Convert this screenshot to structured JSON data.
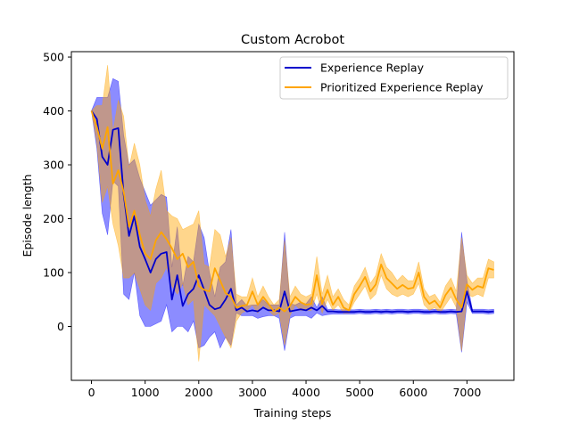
{
  "chart_data": {
    "type": "line",
    "title": "Custom Acrobot",
    "xlabel": "Training steps",
    "ylabel": "Episode length",
    "xlim": [
      -375,
      7875
    ],
    "ylim": [
      -100,
      510
    ],
    "xticks": [
      0,
      1000,
      2000,
      3000,
      4000,
      5000,
      6000,
      7000
    ],
    "yticks": [
      0,
      100,
      200,
      300,
      400,
      500
    ],
    "xtick_labels": [
      "0",
      "1000",
      "2000",
      "3000",
      "4000",
      "5000",
      "6000",
      "7000"
    ],
    "ytick_labels": [
      "0",
      "100",
      "200",
      "300",
      "400",
      "500"
    ],
    "grid": false,
    "legend_position": "top-right",
    "series": [
      {
        "name": "Experience Replay",
        "color": "#0000cc",
        "band_color": "#0000ff",
        "x": [
          0,
          100,
          200,
          300,
          400,
          500,
          600,
          700,
          800,
          900,
          1000,
          1100,
          1200,
          1300,
          1400,
          1500,
          1600,
          1700,
          1800,
          1900,
          2000,
          2100,
          2200,
          2300,
          2400,
          2500,
          2600,
          2700,
          2800,
          2900,
          3000,
          3100,
          3200,
          3300,
          3400,
          3500,
          3600,
          3700,
          3800,
          3900,
          4000,
          4100,
          4200,
          4300,
          4400,
          4500,
          4600,
          4700,
          4800,
          4900,
          5000,
          5100,
          5200,
          5300,
          5400,
          5500,
          5600,
          5700,
          5800,
          5900,
          6000,
          6100,
          6200,
          6300,
          6400,
          6500,
          6600,
          6700,
          6800,
          6900,
          7000,
          7100,
          7200,
          7300,
          7400,
          7500
        ],
        "y": [
          400,
          385,
          315,
          300,
          365,
          368,
          245,
          168,
          205,
          148,
          125,
          100,
          125,
          135,
          138,
          50,
          95,
          38,
          60,
          70,
          95,
          68,
          40,
          32,
          35,
          50,
          70,
          30,
          35,
          28,
          30,
          28,
          35,
          30,
          30,
          28,
          65,
          28,
          30,
          32,
          30,
          35,
          30,
          38,
          28,
          28,
          27,
          27,
          27,
          27,
          28,
          27,
          27,
          28,
          27,
          28,
          27,
          28,
          28,
          27,
          28,
          28,
          27,
          27,
          28,
          27,
          27,
          28,
          27,
          28,
          65,
          28,
          28,
          28,
          27,
          28
        ],
        "lower": [
          400,
          330,
          210,
          170,
          270,
          260,
          60,
          50,
          100,
          20,
          0,
          0,
          5,
          10,
          40,
          -10,
          0,
          0,
          -10,
          10,
          -40,
          -35,
          -20,
          -10,
          -40,
          -20,
          -35,
          25,
          20,
          20,
          20,
          15,
          18,
          20,
          20,
          15,
          -45,
          15,
          20,
          20,
          20,
          15,
          25,
          20,
          22,
          23,
          23,
          23,
          23,
          23,
          24,
          23,
          23,
          24,
          23,
          24,
          23,
          24,
          24,
          23,
          24,
          24,
          23,
          23,
          24,
          23,
          23,
          24,
          23,
          -48,
          45,
          24,
          24,
          24,
          23,
          24
        ],
        "upper": [
          400,
          425,
          425,
          425,
          460,
          455,
          355,
          300,
          310,
          275,
          250,
          225,
          235,
          245,
          240,
          110,
          185,
          75,
          130,
          120,
          190,
          165,
          100,
          55,
          110,
          120,
          180,
          40,
          50,
          38,
          40,
          40,
          50,
          40,
          40,
          40,
          175,
          42,
          40,
          45,
          42,
          55,
          35,
          55,
          32,
          32,
          31,
          31,
          31,
          31,
          32,
          31,
          31,
          32,
          31,
          32,
          31,
          32,
          32,
          31,
          32,
          32,
          31,
          31,
          32,
          31,
          31,
          32,
          31,
          175,
          85,
          32,
          32,
          32,
          31,
          32
        ]
      },
      {
        "name": "Prioritized Experience Replay",
        "color": "#ffa500",
        "band_color": "#ffa500",
        "x": [
          0,
          100,
          200,
          300,
          400,
          500,
          600,
          700,
          800,
          900,
          1000,
          1100,
          1200,
          1300,
          1400,
          1500,
          1600,
          1700,
          1800,
          1900,
          2000,
          2100,
          2200,
          2300,
          2400,
          2500,
          2600,
          2700,
          2800,
          2900,
          3000,
          3100,
          3200,
          3300,
          3400,
          3500,
          3600,
          3700,
          3800,
          3900,
          4000,
          4100,
          4200,
          4300,
          4400,
          4500,
          4600,
          4700,
          4800,
          4900,
          5000,
          5100,
          5200,
          5300,
          5400,
          5500,
          5600,
          5700,
          5800,
          5900,
          6000,
          6100,
          6200,
          6300,
          6400,
          6500,
          6600,
          6700,
          6800,
          6900,
          7000,
          7100,
          7200,
          7300,
          7400,
          7500
        ],
        "y": [
          400,
          370,
          330,
          370,
          265,
          290,
          250,
          185,
          215,
          170,
          135,
          125,
          160,
          175,
          162,
          145,
          125,
          135,
          110,
          120,
          75,
          68,
          65,
          108,
          85,
          62,
          55,
          35,
          38,
          40,
          65,
          40,
          55,
          42,
          28,
          35,
          28,
          38,
          55,
          45,
          40,
          42,
          95,
          42,
          68,
          40,
          55,
          35,
          30,
          60,
          75,
          92,
          65,
          78,
          115,
          90,
          80,
          70,
          77,
          70,
          72,
          100,
          55,
          42,
          48,
          35,
          58,
          72,
          50,
          35,
          78,
          68,
          75,
          72,
          108,
          105
        ],
        "lower": [
          400,
          340,
          230,
          260,
          190,
          150,
          90,
          90,
          100,
          70,
          40,
          30,
          80,
          90,
          110,
          75,
          60,
          80,
          40,
          50,
          -65,
          40,
          30,
          20,
          0,
          -20,
          -40,
          10,
          25,
          30,
          40,
          25,
          40,
          30,
          20,
          25,
          -35,
          20,
          40,
          30,
          30,
          30,
          60,
          25,
          50,
          30,
          40,
          25,
          25,
          45,
          60,
          75,
          50,
          60,
          95,
          70,
          60,
          55,
          60,
          55,
          60,
          80,
          40,
          30,
          35,
          25,
          40,
          55,
          35,
          -45,
          60,
          55,
          60,
          55,
          90,
          90
        ],
        "upper": [
          400,
          410,
          410,
          485,
          360,
          420,
          390,
          295,
          340,
          300,
          235,
          205,
          255,
          290,
          215,
          205,
          200,
          180,
          185,
          190,
          215,
          115,
          110,
          180,
          170,
          130,
          165,
          60,
          55,
          55,
          90,
          55,
          75,
          55,
          40,
          50,
          160,
          55,
          75,
          60,
          55,
          60,
          130,
          60,
          95,
          55,
          70,
          50,
          40,
          75,
          90,
          110,
          80,
          95,
          135,
          110,
          100,
          85,
          95,
          85,
          85,
          120,
          70,
          55,
          60,
          45,
          75,
          90,
          65,
          165,
          95,
          80,
          90,
          90,
          125,
          120
        ]
      }
    ]
  }
}
